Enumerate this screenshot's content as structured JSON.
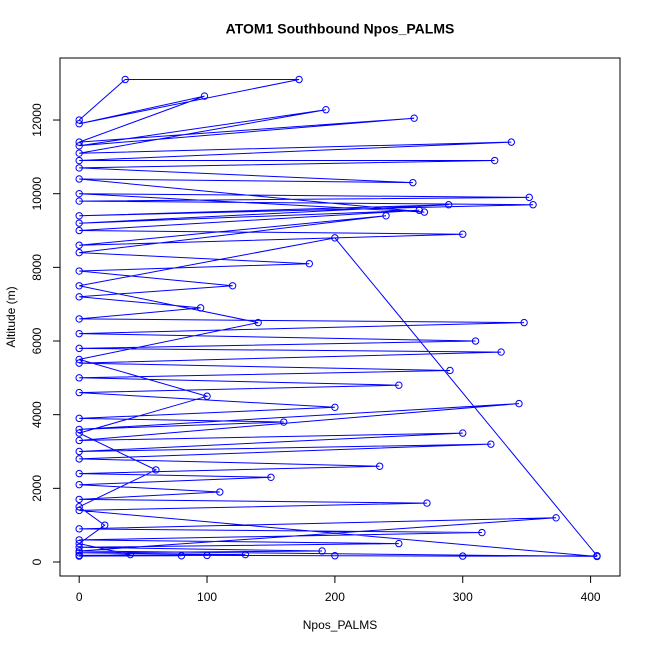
{
  "chart_data": {
    "type": "line",
    "title": "ATOM1 Southbound Npos_PALMS",
    "x_label": "Npos_PALMS",
    "y_label": "Altitude (m)",
    "markers": true,
    "color": "#0000ff",
    "xlim": [
      -15,
      423
    ],
    "ylim": [
      -380,
      13684
    ],
    "xticks": [
      0,
      100,
      200,
      300,
      400
    ],
    "yticks": [
      0,
      2000,
      4000,
      6000,
      8000,
      10000,
      12000
    ],
    "x": [
      0,
      36,
      172,
      0,
      98,
      0,
      262,
      0,
      193,
      0,
      338,
      0,
      325,
      0,
      261,
      0,
      270,
      0,
      352,
      0,
      355,
      0,
      289,
      0,
      266,
      0,
      300,
      0,
      240,
      0,
      180,
      0,
      120,
      0,
      95,
      0,
      348,
      0,
      310,
      0,
      330,
      0,
      290,
      0,
      250,
      0,
      200,
      0,
      160,
      0,
      344,
      0,
      300,
      0,
      322,
      0,
      235,
      0,
      150,
      0,
      110,
      0,
      272,
      0,
      405,
      0,
      373,
      0,
      315,
      0,
      250,
      0,
      190,
      0,
      130,
      0,
      80,
      0,
      40,
      0,
      20,
      0,
      60,
      0,
      100,
      0,
      140,
      0,
      200,
      405,
      300,
      200,
      100,
      0
    ],
    "values": [
      12000,
      13100,
      13100,
      11900,
      12650,
      11400,
      12050,
      11300,
      12280,
      11100,
      11400,
      10900,
      10900,
      10700,
      10300,
      10400,
      9500,
      10000,
      9900,
      9800,
      9700,
      9400,
      9700,
      9200,
      9550,
      9000,
      8900,
      8600,
      9400,
      8400,
      8100,
      7900,
      7500,
      7200,
      6900,
      6600,
      6500,
      6200,
      6000,
      5800,
      5700,
      5400,
      5200,
      5000,
      4800,
      4600,
      4200,
      3900,
      3800,
      3600,
      4300,
      3300,
      3500,
      3000,
      3200,
      2800,
      2600,
      2400,
      2300,
      2100,
      1900,
      1700,
      1600,
      1400,
      150,
      300,
      1200,
      900,
      800,
      600,
      500,
      400,
      300,
      250,
      200,
      180,
      170,
      160,
      200,
      500,
      1000,
      1500,
      2500,
      3500,
      4500,
      5500,
      6500,
      7500,
      8800,
      170,
      160,
      170,
      180,
      170
    ]
  }
}
